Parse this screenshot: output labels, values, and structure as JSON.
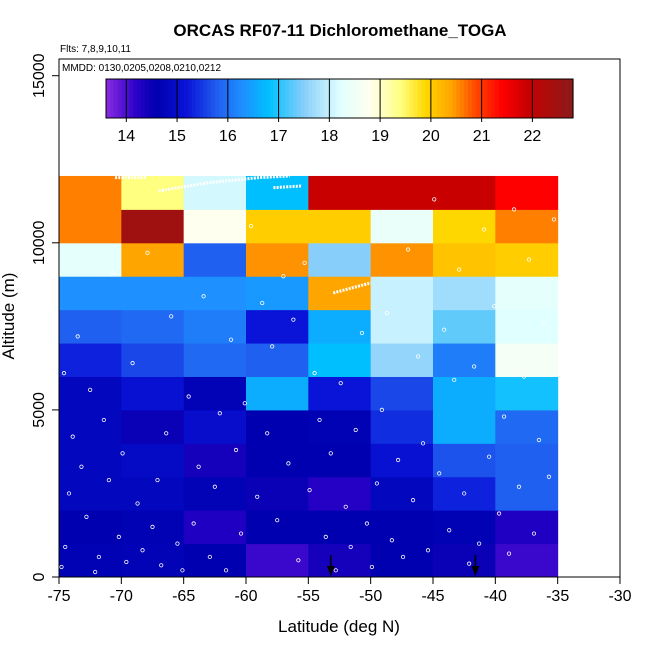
{
  "chart_data": {
    "type": "heatmap",
    "title": "ORCAS RF07-11 Dichloromethane_TOGA",
    "note_flights": "Flts: 7,8,9,10,11",
    "note_dates": "MMDD: 0130,0205,0208,0210,0212",
    "xlabel": "Latitude (deg N)",
    "ylabel": "Altitude (m)",
    "xlim": [
      -75,
      -30
    ],
    "ylim": [
      0,
      15500
    ],
    "x_ticks": [
      -75,
      -70,
      -65,
      -60,
      -55,
      -50,
      -45,
      -40,
      -35,
      -30
    ],
    "x_tick_labels": [
      "-75",
      "-70",
      "-65",
      "-60",
      "-55",
      "-50",
      "-45",
      "-40",
      "-35",
      "-30"
    ],
    "y_ticks": [
      0,
      5000,
      10000,
      15000
    ],
    "y_tick_labels": [
      "0",
      "5000",
      "10000",
      "15000"
    ],
    "colorbar": {
      "range": [
        13.6,
        22.8
      ],
      "ticks": [
        14,
        15,
        16,
        17,
        18,
        19,
        20,
        21,
        22
      ],
      "tick_labels": [
        "14",
        "15",
        "16",
        "17",
        "18",
        "19",
        "20",
        "21",
        "22"
      ],
      "stops": [
        {
          "v": 13.6,
          "c": "#8a2be2"
        },
        {
          "v": 14.2,
          "c": "#2a00c8"
        },
        {
          "v": 14.6,
          "c": "#0000b0"
        },
        {
          "v": 15.2,
          "c": "#0a14d8"
        },
        {
          "v": 15.8,
          "c": "#2060f0"
        },
        {
          "v": 16.3,
          "c": "#1e90ff"
        },
        {
          "v": 16.8,
          "c": "#00bfff"
        },
        {
          "v": 17.5,
          "c": "#87cefa"
        },
        {
          "v": 18.2,
          "c": "#e0ffff"
        },
        {
          "v": 18.8,
          "c": "#fffff0"
        },
        {
          "v": 19.4,
          "c": "#ffff80"
        },
        {
          "v": 19.9,
          "c": "#ffd700"
        },
        {
          "v": 20.4,
          "c": "#ffa500"
        },
        {
          "v": 20.9,
          "c": "#ff4500"
        },
        {
          "v": 21.4,
          "c": "#ff0000"
        },
        {
          "v": 21.9,
          "c": "#c80000"
        },
        {
          "v": 22.8,
          "c": "#8b1a1a"
        }
      ]
    },
    "lat_bins": [
      -75,
      -70,
      -65,
      -60,
      -55,
      -50,
      -45,
      -40,
      -35
    ],
    "alt_bins": [
      0,
      1000,
      2000,
      3000,
      4000,
      5000,
      6000,
      7000,
      8000,
      9000,
      10000,
      11000,
      12000
    ],
    "cells": [
      [
        14.65,
        14.7,
        14.6,
        14.1,
        14.4,
        14.6,
        14.5,
        14.1
      ],
      [
        14.6,
        14.65,
        14.3,
        14.6,
        14.6,
        14.6,
        14.65,
        14.3
      ],
      [
        14.8,
        14.8,
        14.7,
        14.5,
        14.25,
        14.8,
        15.3,
        15.8
      ],
      [
        14.8,
        14.9,
        14.4,
        14.6,
        14.6,
        15.1,
        15.7,
        15.8
      ],
      [
        14.8,
        14.5,
        15.0,
        14.6,
        14.65,
        15.4,
        16.6,
        15.9
      ],
      [
        14.8,
        15.1,
        14.7,
        16.6,
        15.2,
        15.6,
        16.6,
        16.9
      ],
      [
        15.3,
        15.6,
        15.9,
        15.8,
        16.8,
        17.6,
        16.1,
        18.6
      ],
      [
        15.8,
        15.9,
        16.1,
        15.2,
        16.6,
        18.0,
        17.3,
        18.2
      ],
      [
        16.3,
        16.3,
        16.3,
        16.4,
        20.4,
        18.0,
        17.7,
        18.3
      ],
      [
        18.3,
        20.4,
        15.8,
        20.5,
        17.5,
        20.5,
        20.1,
        20.0
      ],
      [
        20.6,
        22.5,
        18.8,
        20.0,
        20.0,
        18.4,
        19.9,
        20.6
      ],
      [
        20.6,
        19.4,
        18.1,
        16.8,
        21.9,
        21.9,
        21.9,
        21.4
      ]
    ],
    "arrows_lat": [
      -53.2,
      -41.6
    ],
    "flight_tracks": [
      {
        "lat": [
          -70.5,
          -68
        ],
        "alt": [
          11950,
          11950
        ]
      },
      {
        "lat": [
          -67,
          -63,
          -59,
          -56.5
        ],
        "alt": [
          11550,
          11800,
          11950,
          12000
        ]
      },
      {
        "lat": [
          -57.8,
          -55.5
        ],
        "alt": [
          11650,
          11700
        ]
      },
      {
        "lat": [
          -53,
          -50
        ],
        "alt": [
          8500,
          8800
        ]
      }
    ],
    "samples": [
      [
        -74.8,
        300
      ],
      [
        -74.5,
        900
      ],
      [
        -74.2,
        2500
      ],
      [
        -73.9,
        4200
      ],
      [
        -74.6,
        6100
      ],
      [
        -73.5,
        7200
      ],
      [
        -73.2,
        3300
      ],
      [
        -72.8,
        1800
      ],
      [
        -72.5,
        5600
      ],
      [
        -72.1,
        150
      ],
      [
        -71.8,
        600
      ],
      [
        -71.4,
        4700
      ],
      [
        -71.0,
        2900
      ],
      [
        -70.7,
        9100
      ],
      [
        -70.2,
        1200
      ],
      [
        -69.9,
        3700
      ],
      [
        -69.6,
        450
      ],
      [
        -69.1,
        6400
      ],
      [
        -68.7,
        2200
      ],
      [
        -68.3,
        800
      ],
      [
        -67.9,
        9700
      ],
      [
        -67.5,
        1500
      ],
      [
        -67.1,
        2900
      ],
      [
        -66.8,
        350
      ],
      [
        -66.4,
        4300
      ],
      [
        -66.0,
        7800
      ],
      [
        -65.5,
        1000
      ],
      [
        -65.1,
        200
      ],
      [
        -64.6,
        5400
      ],
      [
        -64.2,
        1600
      ],
      [
        -63.8,
        3300
      ],
      [
        -63.4,
        8400
      ],
      [
        -62.9,
        600
      ],
      [
        -62.5,
        2700
      ],
      [
        -62.1,
        4900
      ],
      [
        -61.6,
        200
      ],
      [
        -61.2,
        7100
      ],
      [
        -60.8,
        3800
      ],
      [
        -60.4,
        1300
      ],
      [
        -60.1,
        5200
      ],
      [
        -59.6,
        10500
      ],
      [
        -59.1,
        2400
      ],
      [
        -58.7,
        8200
      ],
      [
        -58.3,
        4300
      ],
      [
        -57.9,
        6900
      ],
      [
        -57.5,
        1700
      ],
      [
        -57.0,
        9000
      ],
      [
        -56.6,
        3400
      ],
      [
        -56.2,
        7700
      ],
      [
        -55.8,
        500
      ],
      [
        -55.3,
        9400
      ],
      [
        -54.9,
        2600
      ],
      [
        -54.5,
        6100
      ],
      [
        -54.1,
        4700
      ],
      [
        -53.6,
        1200
      ],
      [
        -53.2,
        3700
      ],
      [
        -52.8,
        200
      ],
      [
        -52.4,
        5800
      ],
      [
        -52.0,
        2100
      ],
      [
        -51.6,
        900
      ],
      [
        -51.2,
        4400
      ],
      [
        -50.7,
        7300
      ],
      [
        -50.3,
        1600
      ],
      [
        -49.9,
        300
      ],
      [
        -49.5,
        2800
      ],
      [
        -49.1,
        5000
      ],
      [
        -48.7,
        7900
      ],
      [
        -48.3,
        1100
      ],
      [
        -47.8,
        3500
      ],
      [
        -47.4,
        600
      ],
      [
        -47.0,
        9800
      ],
      [
        -46.6,
        2300
      ],
      [
        -46.2,
        6600
      ],
      [
        -45.8,
        4000
      ],
      [
        -45.4,
        800
      ],
      [
        -44.9,
        11300
      ],
      [
        -44.5,
        3100
      ],
      [
        -44.1,
        7400
      ],
      [
        -43.7,
        1400
      ],
      [
        -43.3,
        5900
      ],
      [
        -42.9,
        9200
      ],
      [
        -42.5,
        2500
      ],
      [
        -42.1,
        400
      ],
      [
        -41.7,
        6300
      ],
      [
        -41.3,
        1000
      ],
      [
        -40.9,
        10400
      ],
      [
        -40.5,
        3600
      ],
      [
        -40.1,
        8100
      ],
      [
        -39.7,
        1900
      ],
      [
        -39.3,
        4800
      ],
      [
        -38.9,
        700
      ],
      [
        -38.5,
        11000
      ],
      [
        -38.1,
        2700
      ],
      [
        -37.7,
        6000
      ],
      [
        -37.3,
        9500
      ],
      [
        -36.9,
        1300
      ],
      [
        -36.5,
        4100
      ],
      [
        -36.1,
        7600
      ],
      [
        -35.7,
        3000
      ],
      [
        -35.3,
        10700
      ]
    ]
  }
}
